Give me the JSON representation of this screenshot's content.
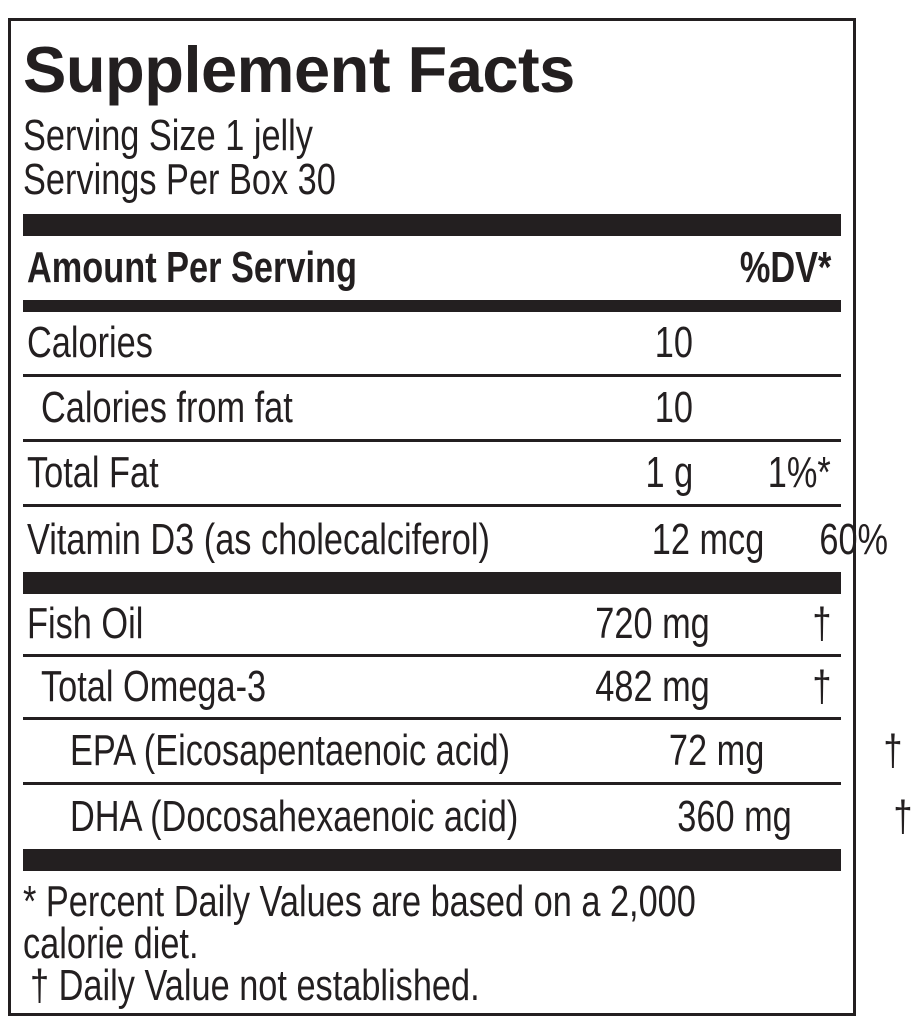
{
  "title": "Supplement Facts",
  "serving": {
    "size": "Serving Size 1 jelly",
    "per_box": "Servings Per Box 30"
  },
  "header": {
    "amount_label": "Amount Per Serving",
    "dv_label": "%DV*"
  },
  "rows": [
    {
      "name": "Calories",
      "amount": "10",
      "dv": ""
    },
    {
      "name": "Calories from fat",
      "amount": "10",
      "dv": ""
    },
    {
      "name": "Total Fat",
      "amount": "1 g",
      "dv": "1%*"
    },
    {
      "name": "Vitamin D3 (as cholecalciferol)",
      "amount": "12 mcg",
      "dv": "60%"
    },
    {
      "name": "Fish Oil",
      "amount": "720 mg",
      "dv": "†"
    },
    {
      "name": "Total Omega-3",
      "amount": "482 mg",
      "dv": "†"
    },
    {
      "name": "EPA (Eicosapentaenoic acid)",
      "amount": "72 mg",
      "dv": "†"
    },
    {
      "name": "DHA (Docosahexaenoic acid)",
      "amount": "360 mg",
      "dv": "†"
    }
  ],
  "footnotes": {
    "line1": "* Percent Daily Values are based on a 2,000",
    "line2": "calorie diet.",
    "line3": "† Daily Value not established."
  },
  "colors": {
    "ink": "#231f20",
    "background": "#ffffff"
  }
}
